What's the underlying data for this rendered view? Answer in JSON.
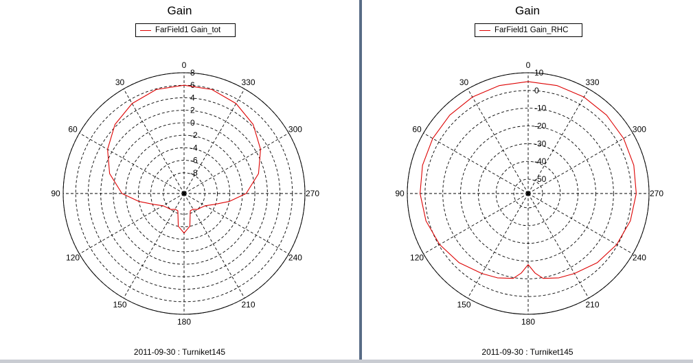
{
  "panels": [
    {
      "title": "Gain",
      "legend_label": "FarField1 Gain_tot",
      "footer": "2011-09-30 : Turniket145"
    },
    {
      "title": "Gain",
      "legend_label": "FarField1 Gain_RHC",
      "footer": "2011-09-30 : Turniket145"
    }
  ],
  "colors": {
    "trace": "#dd0000",
    "grid": "#000000",
    "divider": "#596c86"
  },
  "chart_data": [
    {
      "type": "polar-line",
      "title": "Gain",
      "angle_ticks": [
        "0",
        "30",
        "60",
        "90",
        "120",
        "150",
        "180",
        "210",
        "240",
        "270",
        "300",
        "330"
      ],
      "angle_direction": "counterclockwise, 0 at top",
      "radial_ticks": [
        "8",
        "6",
        "4",
        "2",
        "0",
        "-2",
        "-4",
        "-6",
        "-8"
      ],
      "rlim": [
        -10,
        8
      ],
      "grid": true,
      "legend_position": "top-center",
      "series": [
        {
          "name": "FarField1 Gain_tot",
          "theta": [
            0,
            15,
            30,
            45,
            60,
            75,
            90,
            100,
            110,
            120,
            130,
            140,
            150,
            160,
            170,
            180,
            190,
            200,
            210,
            220,
            230,
            240,
            250,
            260,
            270,
            285,
            300,
            315,
            330,
            345,
            360
          ],
          "r": [
            6.0,
            5.9,
            5.3,
            4.3,
            2.8,
            1.0,
            -1.4,
            -4.0,
            -6.2,
            -7.4,
            -7.8,
            -8.0,
            -8.4,
            -8.4,
            -6.0,
            -5.0,
            -6.0,
            -8.4,
            -8.4,
            -8.0,
            -7.8,
            -7.4,
            -6.2,
            -4.0,
            -1.4,
            1.0,
            2.8,
            4.3,
            5.3,
            5.9,
            6.0
          ]
        }
      ]
    },
    {
      "type": "polar-line",
      "title": "Gain",
      "angle_ticks": [
        "0",
        "30",
        "60",
        "90",
        "120",
        "150",
        "180",
        "210",
        "240",
        "270",
        "300",
        "330"
      ],
      "angle_direction": "counterclockwise, 0 at top",
      "radial_ticks": [
        "10",
        "0",
        "-10",
        "-20",
        "-30",
        "-40",
        "-50"
      ],
      "rlim": [
        -55,
        10
      ],
      "grid": true,
      "legend_position": "top-center",
      "series": [
        {
          "name": "FarField1 Gain_RHC",
          "theta": [
            0,
            15,
            30,
            45,
            60,
            75,
            90,
            105,
            120,
            135,
            150,
            160,
            170,
            175,
            180,
            185,
            190,
            200,
            210,
            225,
            240,
            255,
            270,
            285,
            300,
            315,
            330,
            345,
            360
          ],
          "r": [
            5.0,
            4.9,
            4.7,
            4.4,
            4.0,
            3.5,
            2.8,
            1.5,
            -0.5,
            -3.0,
            -6.0,
            -7.5,
            -9.5,
            -13.0,
            -18.0,
            -13.0,
            -9.5,
            -7.5,
            -6.0,
            -3.0,
            -0.5,
            1.5,
            2.8,
            3.5,
            4.0,
            4.4,
            4.7,
            4.9,
            5.0
          ]
        }
      ]
    }
  ]
}
